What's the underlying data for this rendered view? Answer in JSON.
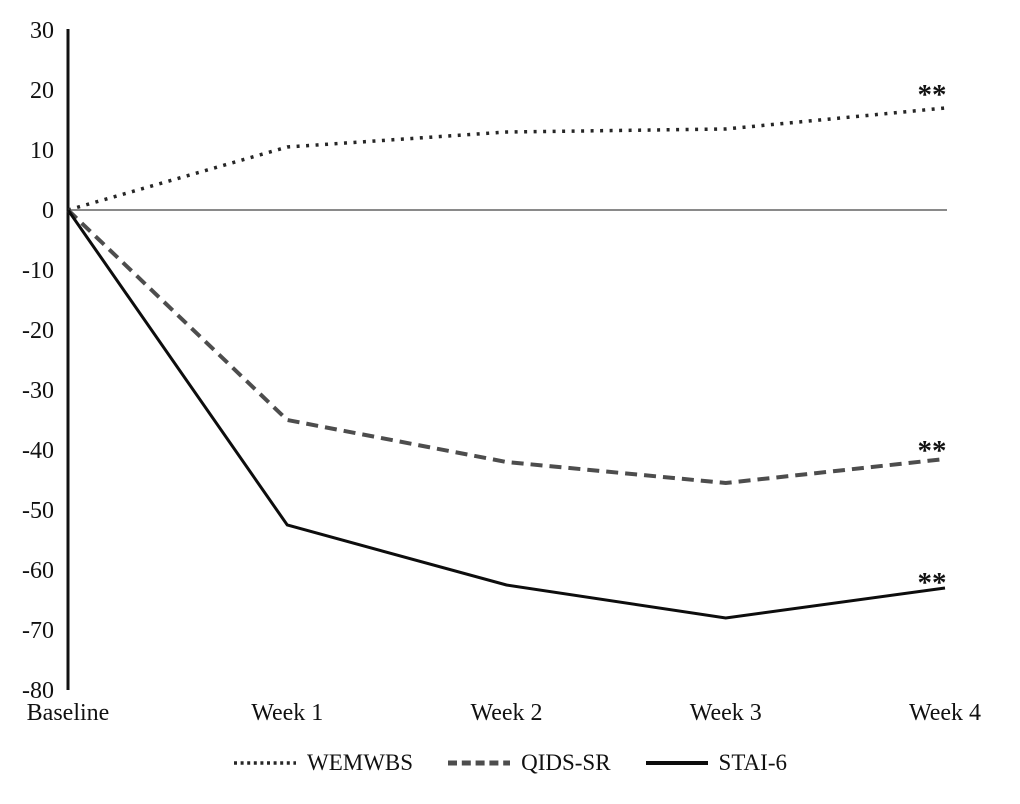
{
  "chart_data": {
    "type": "line",
    "title": "",
    "xlabel": "",
    "ylabel": "",
    "categories": [
      "Baseline",
      "Week 1",
      "Week 2",
      "Week 3",
      "Week 4"
    ],
    "series": [
      {
        "name": "WEMWBS",
        "line_style": "dotted",
        "color": "#262626",
        "values": [
          0,
          10.5,
          13,
          13.5,
          17
        ],
        "end_annotation": "**"
      },
      {
        "name": "QIDS-SR",
        "line_style": "dashed",
        "color": "#4d4d4d",
        "values": [
          0,
          -35,
          -42,
          -45.5,
          -41.5
        ],
        "end_annotation": "**"
      },
      {
        "name": "STAI-6",
        "line_style": "solid",
        "color": "#0d0d0d",
        "values": [
          0,
          -52.5,
          -62.5,
          -68,
          -63
        ],
        "end_annotation": "**"
      }
    ],
    "ylim": [
      -80,
      30
    ],
    "y_tick_step": 10,
    "y_tick_labels": [
      "30",
      "20",
      "10",
      "0",
      "-10",
      "-20",
      "-30",
      "-40",
      "-50",
      "-60",
      "-70",
      "-80"
    ],
    "grid": false,
    "zero_line": true,
    "zero_line_color": "#8a8a8a",
    "legend_position": "bottom",
    "significance_marker": "**"
  }
}
